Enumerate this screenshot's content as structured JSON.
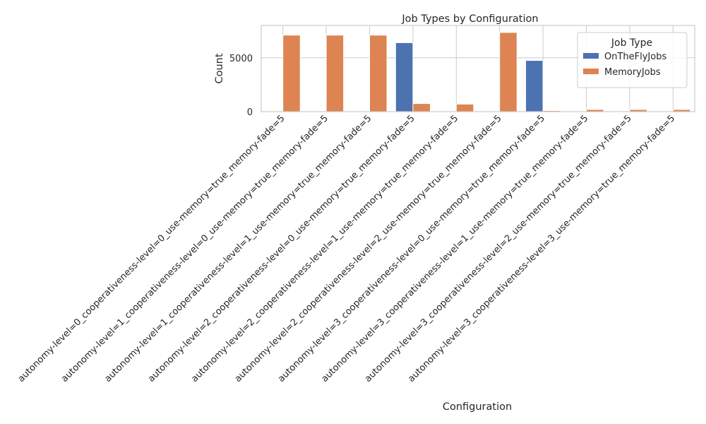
{
  "chart_data": {
    "type": "bar",
    "title": "Job Types by Configuration",
    "xlabel": "Configuration",
    "ylabel": "Count",
    "ylim": [
      0,
      8000
    ],
    "yticks": [
      0,
      5000
    ],
    "grid": true,
    "legend_position": "top-right",
    "legend_title": "Job Type",
    "categories": [
      "autonomy-level=0_cooperativeness-level=0_use-memory=true_memory-fade=5",
      "autonomy-level=1_cooperativeness-level=0_use-memory=true_memory-fade=5",
      "autonomy-level=1_cooperativeness-level=1_use-memory=true_memory-fade=5",
      "autonomy-level=2_cooperativeness-level=0_use-memory=true_memory-fade=5",
      "autonomy-level=2_cooperativeness-level=1_use-memory=true_memory-fade=5",
      "autonomy-level=2_cooperativeness-level=2_use-memory=true_memory-fade=5",
      "autonomy-level=3_cooperativeness-level=0_use-memory=true_memory-fade=5",
      "autonomy-level=3_cooperativeness-level=1_use-memory=true_memory-fade=5",
      "autonomy-level=3_cooperativeness-level=2_use-memory=true_memory-fade=5",
      "autonomy-level=3_cooperativeness-level=3_use-memory=true_memory-fade=5"
    ],
    "series": [
      {
        "name": "OnTheFlyJobs",
        "color": "#4c72b0",
        "values": [
          0,
          0,
          0,
          6400,
          0,
          0,
          4750,
          0,
          0,
          0
        ]
      },
      {
        "name": "MemoryJobs",
        "color": "#dd8452",
        "values": [
          7100,
          7100,
          7100,
          750,
          700,
          7350,
          100,
          200,
          200,
          200
        ]
      }
    ]
  }
}
